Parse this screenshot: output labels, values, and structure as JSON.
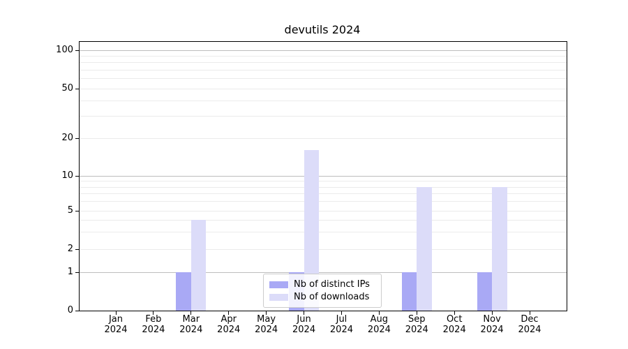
{
  "title": "devutils 2024",
  "colors": {
    "distinct_ips": "#a9a9f5",
    "downloads": "#dcdcf9",
    "grid_major": "#bdbdbd",
    "grid_minor": "#ebebeb",
    "axis": "#000000",
    "legend_border": "#cccccc"
  },
  "legend": {
    "items": [
      {
        "label": "Nb of distinct IPs"
      },
      {
        "label": "Nb of downloads"
      }
    ]
  },
  "chart_data": {
    "type": "bar",
    "title": "devutils 2024",
    "categories": [
      "Jan 2024",
      "Feb 2024",
      "Mar 2024",
      "Apr 2024",
      "May 2024",
      "Jun 2024",
      "Jul 2024",
      "Aug 2024",
      "Sep 2024",
      "Oct 2024",
      "Nov 2024",
      "Dec 2024"
    ],
    "x_tick_months": [
      "Jan",
      "Feb",
      "Mar",
      "Apr",
      "May",
      "Jun",
      "Jul",
      "Aug",
      "Sep",
      "Oct",
      "Nov",
      "Dec"
    ],
    "x_tick_year": "2024",
    "series": [
      {
        "name": "Nb of distinct IPs",
        "color": "#a9a9f5",
        "values": [
          0,
          0,
          1,
          0,
          0,
          1,
          0,
          0,
          1,
          0,
          1,
          0
        ]
      },
      {
        "name": "Nb of downloads",
        "color": "#dcdcf9",
        "values": [
          0,
          0,
          4,
          0,
          0,
          16,
          0,
          0,
          8,
          0,
          8,
          0
        ]
      }
    ],
    "y_axis": {
      "scale": "symlog",
      "tick_values": [
        0,
        1,
        2,
        5,
        10,
        20,
        50,
        100
      ],
      "tick_labels": [
        "0",
        "1",
        "2",
        "5",
        "10",
        "20",
        "50",
        "100"
      ],
      "range": [
        0,
        120
      ]
    },
    "grid": {
      "major_values": [
        1,
        10,
        100
      ],
      "minor_values": [
        2,
        3,
        4,
        5,
        6,
        7,
        8,
        9,
        20,
        30,
        40,
        50,
        60,
        70,
        80,
        90
      ]
    },
    "legend_position": "lower center",
    "xlabel": "",
    "ylabel": ""
  }
}
